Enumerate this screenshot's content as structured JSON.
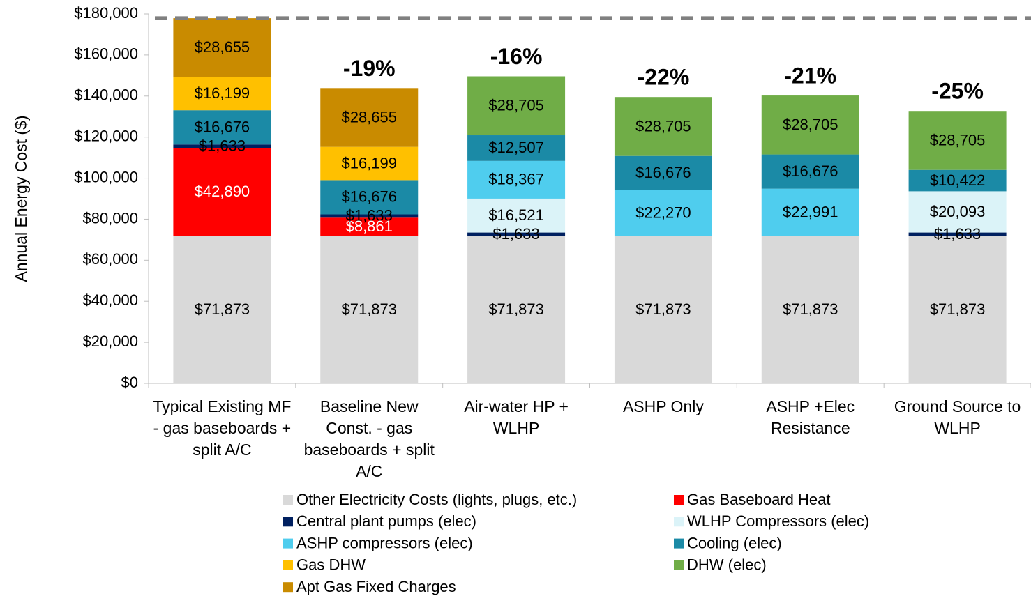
{
  "chart_data": {
    "type": "stacked_bar",
    "y_label": "Annual Energy Cost ($)",
    "categories": [
      "Typical Existing MF - gas baseboards + split A/C",
      "Baseline New Const. - gas baseboards + split A/C",
      "Air-water HP + WLHP",
      "ASHP Only",
      "ASHP +Elec Resistance",
      "Ground Source to WLHP"
    ],
    "annotations": [
      null,
      "-19%",
      "-16%",
      "-22%",
      "-21%",
      "-25%"
    ],
    "reference_line": 178000,
    "ylim": [
      0,
      180000
    ],
    "yticks": [
      {
        "value": 0,
        "label": "$0"
      },
      {
        "value": 20000,
        "label": "$20,000"
      },
      {
        "value": 40000,
        "label": "$40,000"
      },
      {
        "value": 60000,
        "label": "$60,000"
      },
      {
        "value": 80000,
        "label": "$80,000"
      },
      {
        "value": 100000,
        "label": "$100,000"
      },
      {
        "value": 120000,
        "label": "$120,000"
      },
      {
        "value": 140000,
        "label": "$140,000"
      },
      {
        "value": 160000,
        "label": "$160,000"
      },
      {
        "value": 180000,
        "label": "$180,000"
      }
    ],
    "series": [
      {
        "name": "Other Electricity Costs (lights, plugs, etc.)",
        "color": "#d9d9d9",
        "label_color": "#000000",
        "values": [
          71873,
          71873,
          71873,
          71873,
          71873,
          71873
        ],
        "value_labels": [
          "$71,873",
          "$71,873",
          "$71,873",
          "$71,873",
          "$71,873",
          "$71,873"
        ]
      },
      {
        "name": "Gas Baseboard Heat",
        "color": "#ff0000",
        "label_color": "#ffffff",
        "values": [
          42890,
          8861,
          null,
          null,
          null,
          null
        ],
        "value_labels": [
          "$42,890",
          "$8,861",
          null,
          null,
          null,
          null
        ]
      },
      {
        "name": "Central plant pumps (elec)",
        "color": "#002060",
        "label_color": "#000000",
        "values": [
          1633,
          1633,
          1633,
          null,
          null,
          1633
        ],
        "value_labels": [
          "$1,633",
          "$1,633",
          "$1,633",
          null,
          null,
          "$1,633"
        ]
      },
      {
        "name": "WLHP Compressors (elec)",
        "color": "#dbf3f8",
        "label_color": "#000000",
        "values": [
          null,
          null,
          16521,
          null,
          null,
          20093
        ],
        "value_labels": [
          null,
          null,
          "$16,521",
          null,
          null,
          "$20,093"
        ]
      },
      {
        "name": "ASHP compressors (elec)",
        "color": "#4fcdee",
        "label_color": "#000000",
        "values": [
          null,
          null,
          18367,
          22270,
          22991,
          null
        ],
        "value_labels": [
          null,
          null,
          "$18,367",
          "$22,270",
          "$22,991",
          null
        ]
      },
      {
        "name": "Cooling (elec)",
        "color": "#1b8aa6",
        "label_color": "#000000",
        "values": [
          16676,
          16676,
          12507,
          16676,
          16676,
          10422
        ],
        "value_labels": [
          "$16,676",
          "$16,676",
          "$12,507",
          "$16,676",
          "$16,676",
          "$10,422"
        ]
      },
      {
        "name": "Gas DHW",
        "color": "#ffc000",
        "label_color": "#000000",
        "values": [
          16199,
          16199,
          null,
          null,
          null,
          null
        ],
        "value_labels": [
          "$16,199",
          "$16,199",
          null,
          null,
          null,
          null
        ]
      },
      {
        "name": "DHW (elec)",
        "color": "#70ad47",
        "label_color": "#000000",
        "values": [
          null,
          null,
          28705,
          28705,
          28705,
          28705
        ],
        "value_labels": [
          null,
          null,
          "$28,705",
          "$28,705",
          "$28,705",
          "$28,705"
        ]
      },
      {
        "name": "Apt Gas Fixed Charges",
        "color": "#c98b00",
        "label_color": "#000000",
        "values": [
          28655,
          28655,
          null,
          null,
          null,
          null
        ],
        "value_labels": [
          "$28,655",
          "$28,655",
          null,
          null,
          null,
          null
        ]
      }
    ]
  }
}
